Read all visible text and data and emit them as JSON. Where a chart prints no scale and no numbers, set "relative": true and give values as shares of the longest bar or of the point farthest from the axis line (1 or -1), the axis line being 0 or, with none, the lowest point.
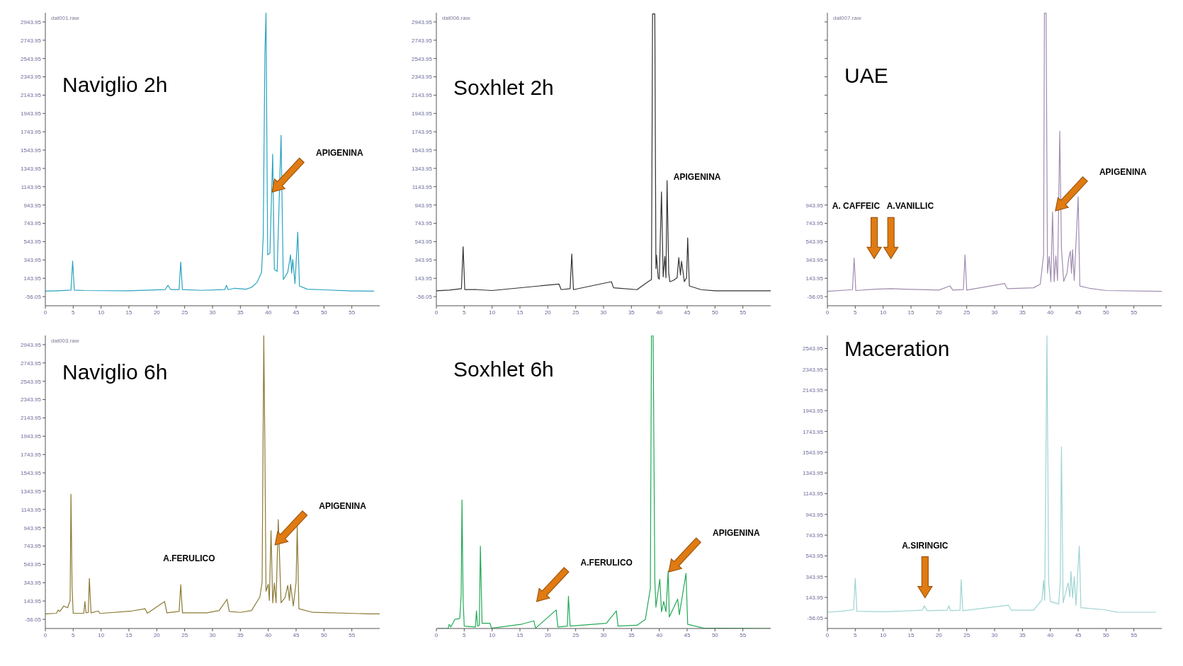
{
  "chart_data": [
    {
      "type": "line",
      "title": "Naviglio 2h",
      "subtitle": "dat001.raw",
      "x": [
        0,
        2.2,
        4.6,
        4.9,
        5.2,
        7,
        15,
        21.5,
        22,
        22.5,
        24,
        24.3,
        24.6,
        28,
        32.2,
        32.5,
        32.8,
        34,
        36,
        37,
        38,
        38.8,
        39.1,
        39.4,
        39.6,
        39.9,
        40.3,
        40.8,
        41.1,
        41.6,
        42.3,
        42.7,
        43.5,
        44.0,
        44.2,
        44.4,
        44.8,
        45.3,
        45.6,
        47,
        50,
        55,
        59
      ],
      "series": [
        {
          "color": "#2aa3c0",
          "values": [
            4,
            8,
            15,
            333,
            15,
            10,
            8,
            20,
            67,
            20,
            20,
            320,
            20,
            12,
            20,
            67,
            20,
            35,
            25,
            45,
            100,
            210,
            600,
            2600,
            3040,
            400,
            420,
            1500,
            240,
            220,
            1706,
            130,
            210,
            400,
            200,
            350,
            86,
            648,
            60,
            25,
            18,
            5,
            4
          ]
        }
      ],
      "xlim": [
        0,
        60
      ],
      "xticks": [
        0,
        5,
        10,
        15,
        20,
        25,
        30,
        35,
        40,
        45,
        50,
        55
      ],
      "ylim": [
        -156.05,
        3043.95
      ],
      "yticks": [
        -56.05,
        143.95,
        343.95,
        543.95,
        743.95,
        943.95,
        1143.95,
        1343.95,
        1543.95,
        1743.95,
        1943.95,
        2143.95,
        2343.95,
        2543.95,
        2743.95,
        2943.95
      ],
      "annotations": [
        "APIGENINA"
      ]
    },
    {
      "type": "line",
      "title": "Soxhlet 2h",
      "subtitle": "dat006.raw",
      "x": [
        0,
        2.3,
        4.5,
        4.8,
        5.1,
        7.3,
        10,
        22,
        22.4,
        24.0,
        24.3,
        24.6,
        31.4,
        31.8,
        36,
        38,
        38.6,
        38.8,
        39.2,
        39.4,
        39.5,
        39.8,
        40.0,
        40.4,
        40.7,
        41.0,
        41.2,
        41.4,
        41.7,
        41.9,
        42.5,
        43.2,
        43.5,
        43.8,
        44.0,
        44.5,
        44.9,
        45.1,
        45.4,
        47.5,
        50,
        60
      ],
      "series": [
        {
          "color": "#333333",
          "values": [
            7,
            15,
            30,
            488,
            20,
            20,
            10,
            81,
            20,
            30,
            410,
            20,
            107,
            40,
            20,
            107,
            130,
            3031,
            3031,
            250,
            396,
            150,
            135,
            1088,
            160,
            383,
            150,
            1212,
            200,
            107,
            120,
            150,
            370,
            180,
            331,
            107,
            150,
            586,
            60,
            20,
            7,
            7
          ]
        }
      ],
      "xlim": [
        0,
        60
      ],
      "xticks": [
        0,
        5,
        10,
        15,
        20,
        25,
        30,
        35,
        40,
        45,
        50,
        55
      ],
      "ylim": [
        -156.05,
        3043.95
      ],
      "yticks": [
        -56.05,
        143.95,
        343.95,
        543.95,
        743.95,
        943.95,
        1143.95,
        1343.95,
        1543.95,
        1743.95,
        1943.95,
        2143.95,
        2343.95,
        2543.95,
        2743.95,
        2943.95
      ],
      "annotations": [
        "APIGENINA"
      ]
    },
    {
      "type": "line",
      "title": "UAE",
      "subtitle": "dat007.raw",
      "x": [
        0,
        4.5,
        4.8,
        5.1,
        8.5,
        11.4,
        20,
        22,
        22.5,
        24.4,
        24.7,
        25.0,
        31.8,
        32.3,
        37,
        38.2,
        38.8,
        38.95,
        39.25,
        39.5,
        39.8,
        40.1,
        40.4,
        40.7,
        41.0,
        41.3,
        41.7,
        42.0,
        42.4,
        43.0,
        43.3,
        43.6,
        43.8,
        44.0,
        44.3,
        45.0,
        45.3,
        47,
        50,
        60
      ],
      "series": [
        {
          "color": "#a08cb0",
          "values": [
            2,
            20,
            364,
            10,
            25,
            30,
            15,
            60,
            15,
            20,
            399,
            15,
            87,
            30,
            40,
            80,
            401,
            3040,
            3040,
            200,
            383,
            106,
            868,
            106,
            388,
            120,
            1750,
            475,
            110,
            200,
            360,
            441,
            200,
            457,
            120,
            1034,
            60,
            35,
            10,
            2
          ]
        }
      ],
      "xlim": [
        0,
        60
      ],
      "xticks": [
        0,
        5,
        10,
        15,
        20,
        25,
        30,
        35,
        40,
        45,
        50,
        55
      ],
      "ylim": [
        -156.05,
        3043.95
      ],
      "yticks": [
        -56.05,
        143.95,
        343.95,
        543.95,
        743.95,
        943.95,
        {
          "value": 1143.95,
          "label": null
        },
        {
          "value": 1343.95,
          "label": null
        },
        {
          "value": 1543.95,
          "label": null
        },
        {
          "value": 1743.95,
          "label": null
        },
        {
          "value": 1943.95,
          "label": null
        },
        {
          "value": 2143.95,
          "label": null
        },
        {
          "value": 2343.95,
          "label": null
        },
        {
          "value": 2543.95,
          "label": null
        },
        {
          "value": 2743.95,
          "label": null
        },
        {
          "value": 2943.95,
          "label": null
        }
      ],
      "annotations": [
        "A. CAFFEIC",
        "A.VANILLIC",
        "APIGENINA"
      ]
    },
    {
      "type": "line",
      "title": "Naviglio 6h",
      "subtitle": "dat003.raw",
      "x": [
        0,
        2.0,
        2.3,
        2.6,
        3.3,
        4.0,
        4.45,
        4.6,
        4.8,
        5.0,
        6.9,
        7.1,
        7.3,
        7.7,
        7.9,
        8.2,
        9.5,
        9.8,
        15.5,
        17.9,
        18.3,
        21.4,
        21.8,
        24.0,
        24.3,
        24.6,
        29,
        31.2,
        32.6,
        33,
        35,
        37,
        38.5,
        38.9,
        39.2,
        39.4,
        39.6,
        40.0,
        40.2,
        40.5,
        40.8,
        41.1,
        41.4,
        41.8,
        42.0,
        42.3,
        43.0,
        43.5,
        43.8,
        44.0,
        44.5,
        45.0,
        45.2,
        45.5,
        48,
        58,
        60
      ],
      "series": [
        {
          "color": "#8c7a35",
          "values": [
            4,
            10,
            45,
            30,
            88,
            70,
            150,
            1310,
            300,
            10,
            10,
            138,
            15,
            20,
            390,
            15,
            35,
            8,
            35,
            60,
            10,
            138,
            15,
            30,
            322,
            15,
            15,
            40,
            163,
            30,
            20,
            40,
            188,
            352,
            3043,
            1800,
            251,
            327,
            150,
            912,
            125,
            340,
            125,
            1033,
            680,
            125,
            180,
            314,
            150,
            327,
            90,
            350,
            957,
            60,
            20,
            4,
            4
          ]
        }
      ],
      "xlim": [
        0,
        60
      ],
      "xticks": [
        0,
        5,
        10,
        15,
        20,
        25,
        30,
        35,
        40,
        45,
        50,
        55
      ],
      "ylim": [
        -156.05,
        3043.95
      ],
      "yticks": [
        -56.05,
        143.95,
        343.95,
        543.95,
        743.95,
        943.95,
        1143.95,
        1343.95,
        1543.95,
        1743.95,
        1943.95,
        2143.95,
        2343.95,
        2543.95,
        2743.95,
        2943.95
      ],
      "annotations": [
        "A.FERULICO",
        "APIGENINA"
      ]
    },
    {
      "type": "line",
      "title": "Soxhlet 6h",
      "x": [
        0,
        2.1,
        2.3,
        2.6,
        3.3,
        4.2,
        4.45,
        4.6,
        4.8,
        5.0,
        7.0,
        7.2,
        7.4,
        7.7,
        7.9,
        8.2,
        9.6,
        9.9,
        15.4,
        17.5,
        17.8,
        21.5,
        21.8,
        23.5,
        23.7,
        24.0,
        30.5,
        32.3,
        32.6,
        36,
        37.5,
        38.4,
        38.6,
        38.9,
        39.2,
        39.4,
        40.1,
        40.4,
        40.8,
        41.2,
        41.6,
        41.8,
        43.3,
        43.6,
        44.8,
        45.1,
        48,
        60
      ],
      "series": [
        {
          "color": "#22aa55",
          "values": [
            0,
            0,
            0.014,
            0.005,
            0.031,
            0.034,
            0.113,
            0.439,
            0.097,
            0.008,
            0.005,
            0.06,
            0.008,
            0.011,
            0.281,
            0.018,
            0.018,
            0.001,
            0.015,
            0.026,
            0.001,
            0.063,
            0.005,
            0.008,
            0.11,
            0.008,
            0.018,
            0.06,
            0.008,
            0.011,
            0.031,
            0.137,
            1,
            1,
            0.167,
            0.073,
            0.168,
            0.057,
            0.092,
            0.057,
            0.196,
            0.039,
            0.1,
            0.047,
            0.188,
            0.014,
            0.001,
            0
          ]
        }
      ],
      "relative": true,
      "xlim": [
        0,
        60
      ],
      "xticks": [
        0,
        5,
        10,
        15,
        20,
        25,
        30,
        35,
        40,
        45,
        50,
        55
      ],
      "annotations": [
        "A.FERULICO",
        "APIGENINA"
      ]
    },
    {
      "type": "line",
      "title": "Maceration",
      "x": [
        0,
        2.5,
        4.7,
        5.0,
        5.3,
        10,
        17.0,
        17.4,
        17.9,
        21.5,
        21.8,
        22.1,
        23.8,
        24.0,
        24.3,
        32.5,
        33,
        37,
        38.5,
        38.8,
        39.0,
        39.4,
        39.7,
        40.0,
        41.5,
        41.8,
        42.0,
        42.3,
        43.2,
        43.5,
        43.7,
        44.0,
        44.3,
        44.6,
        45.2,
        45.5,
        49.7,
        52,
        59
      ],
      "series": [
        {
          "color": "#9fd3d3",
          "values": [
            1,
            10,
            25,
            326,
            10,
            5,
            20,
            63,
            15,
            20,
            63,
            15,
            20,
            314,
            15,
            68,
            20,
            20,
            120,
            307,
            116,
            2670,
            300,
            104,
            80,
            307,
            1596,
            92,
            283,
            150,
            395,
            140,
            343,
            68,
            641,
            44,
            25,
            2,
            1
          ]
        }
      ],
      "xlim": [
        0,
        60
      ],
      "xticks": [
        0,
        5,
        10,
        15,
        20,
        25,
        30,
        35,
        40,
        45,
        50,
        55
      ],
      "ylim": [
        -156.05,
        2670
      ],
      "yticks": [
        -56.05,
        143.95,
        343.95,
        543.95,
        743.95,
        943.95,
        1143.95,
        1343.95,
        1543.95,
        1743.95,
        1943.95,
        2143.95,
        2343.95,
        2543.95
      ],
      "annotations": [
        "A.SIRINGIC"
      ]
    }
  ]
}
